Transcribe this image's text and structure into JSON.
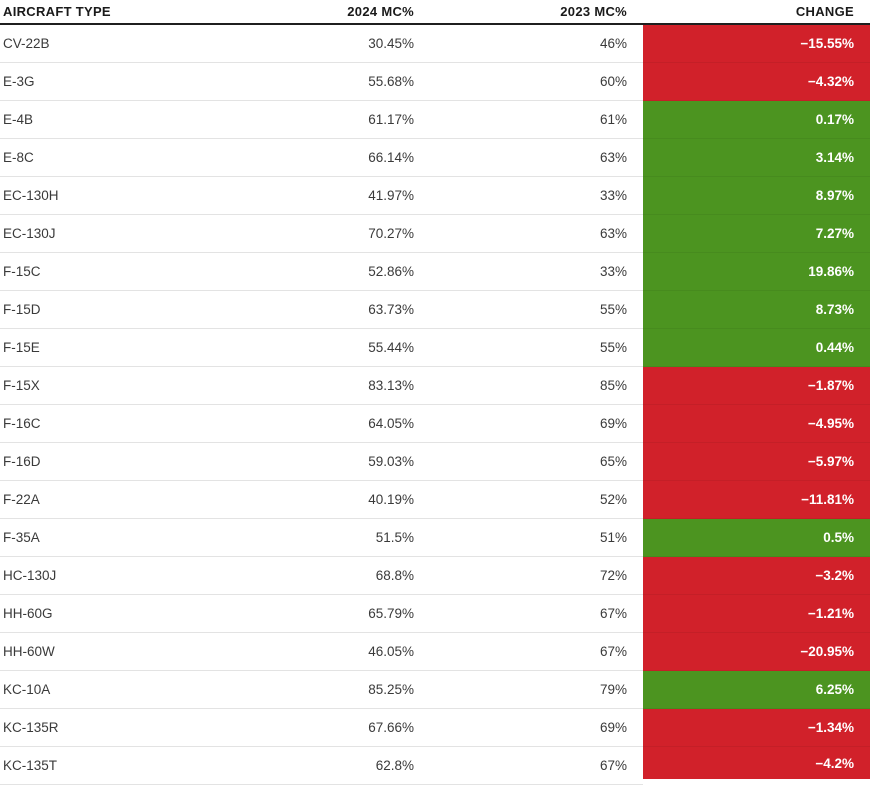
{
  "table": {
    "columns": [
      {
        "label": "AIRCRAFT TYPE"
      },
      {
        "label": "2024 MC%"
      },
      {
        "label": "2023 MC%"
      },
      {
        "label": "CHANGE"
      }
    ],
    "rows": [
      {
        "aircraft": "CV-22B",
        "mc2024": "30.45%",
        "mc2023": "46%",
        "change": "−15.55%",
        "trend": "negative"
      },
      {
        "aircraft": "E-3G",
        "mc2024": "55.68%",
        "mc2023": "60%",
        "change": "−4.32%",
        "trend": "negative"
      },
      {
        "aircraft": "E-4B",
        "mc2024": "61.17%",
        "mc2023": "61%",
        "change": "0.17%",
        "trend": "positive"
      },
      {
        "aircraft": "E-8C",
        "mc2024": "66.14%",
        "mc2023": "63%",
        "change": "3.14%",
        "trend": "positive"
      },
      {
        "aircraft": "EC-130H",
        "mc2024": "41.97%",
        "mc2023": "33%",
        "change": "8.97%",
        "trend": "positive"
      },
      {
        "aircraft": "EC-130J",
        "mc2024": "70.27%",
        "mc2023": "63%",
        "change": "7.27%",
        "trend": "positive"
      },
      {
        "aircraft": "F-15C",
        "mc2024": "52.86%",
        "mc2023": "33%",
        "change": "19.86%",
        "trend": "positive"
      },
      {
        "aircraft": "F-15D",
        "mc2024": "63.73%",
        "mc2023": "55%",
        "change": "8.73%",
        "trend": "positive"
      },
      {
        "aircraft": "F-15E",
        "mc2024": "55.44%",
        "mc2023": "55%",
        "change": "0.44%",
        "trend": "positive"
      },
      {
        "aircraft": "F-15X",
        "mc2024": "83.13%",
        "mc2023": "85%",
        "change": "−1.87%",
        "trend": "negative"
      },
      {
        "aircraft": "F-16C",
        "mc2024": "64.05%",
        "mc2023": "69%",
        "change": "−4.95%",
        "trend": "negative"
      },
      {
        "aircraft": "F-16D",
        "mc2024": "59.03%",
        "mc2023": "65%",
        "change": "−5.97%",
        "trend": "negative"
      },
      {
        "aircraft": "F-22A",
        "mc2024": "40.19%",
        "mc2023": "52%",
        "change": "−11.81%",
        "trend": "negative"
      },
      {
        "aircraft": "F-35A",
        "mc2024": "51.5%",
        "mc2023": "51%",
        "change": "0.5%",
        "trend": "positive"
      },
      {
        "aircraft": "HC-130J",
        "mc2024": "68.8%",
        "mc2023": "72%",
        "change": "−3.2%",
        "trend": "negative"
      },
      {
        "aircraft": "HH-60G",
        "mc2024": "65.79%",
        "mc2023": "67%",
        "change": "−1.21%",
        "trend": "negative"
      },
      {
        "aircraft": "HH-60W",
        "mc2024": "46.05%",
        "mc2023": "67%",
        "change": "−20.95%",
        "trend": "negative"
      },
      {
        "aircraft": "KC-10A",
        "mc2024": "85.25%",
        "mc2023": "79%",
        "change": "6.25%",
        "trend": "positive"
      },
      {
        "aircraft": "KC-135R",
        "mc2024": "67.66%",
        "mc2023": "69%",
        "change": "−1.34%",
        "trend": "negative"
      },
      {
        "aircraft": "KC-135T",
        "mc2024": "62.8%",
        "mc2023": "67%",
        "change": "−4.2%",
        "trend": "negative"
      }
    ]
  },
  "colors": {
    "positive": "#4c9420",
    "negative": "#d1212a",
    "change_text": "#ffffff",
    "header_rule": "#1f1f1f",
    "row_divider": "#e3e3e3"
  },
  "chart_data": {
    "type": "table",
    "title": "Aircraft Mission Capable (MC) rates, 2024 vs 2023",
    "columns": [
      "AIRCRAFT TYPE",
      "2024 MC%",
      "2023 MC%",
      "CHANGE"
    ],
    "rows": [
      [
        "CV-22B",
        30.45,
        46,
        -15.55
      ],
      [
        "E-3G",
        55.68,
        60,
        -4.32
      ],
      [
        "E-4B",
        61.17,
        61,
        0.17
      ],
      [
        "E-8C",
        66.14,
        63,
        3.14
      ],
      [
        "EC-130H",
        41.97,
        33,
        8.97
      ],
      [
        "EC-130J",
        70.27,
        63,
        7.27
      ],
      [
        "F-15C",
        52.86,
        33,
        19.86
      ],
      [
        "F-15D",
        63.73,
        55,
        8.73
      ],
      [
        "F-15E",
        55.44,
        55,
        0.44
      ],
      [
        "F-15X",
        83.13,
        85,
        -1.87
      ],
      [
        "F-16C",
        64.05,
        69,
        -4.95
      ],
      [
        "F-16D",
        59.03,
        65,
        -5.97
      ],
      [
        "F-22A",
        40.19,
        52,
        -11.81
      ],
      [
        "F-35A",
        51.5,
        51,
        0.5
      ],
      [
        "HC-130J",
        68.8,
        72,
        -3.2
      ],
      [
        "HH-60G",
        65.79,
        67,
        -1.21
      ],
      [
        "HH-60W",
        46.05,
        67,
        -20.95
      ],
      [
        "KC-10A",
        85.25,
        79,
        6.25
      ],
      [
        "KC-135R",
        67.66,
        69,
        -1.34
      ],
      [
        "KC-135T",
        62.8,
        67,
        -4.2
      ]
    ],
    "legend": "CHANGE column background: green = positive change, red = negative change",
    "grid": "horizontal row dividers only"
  }
}
